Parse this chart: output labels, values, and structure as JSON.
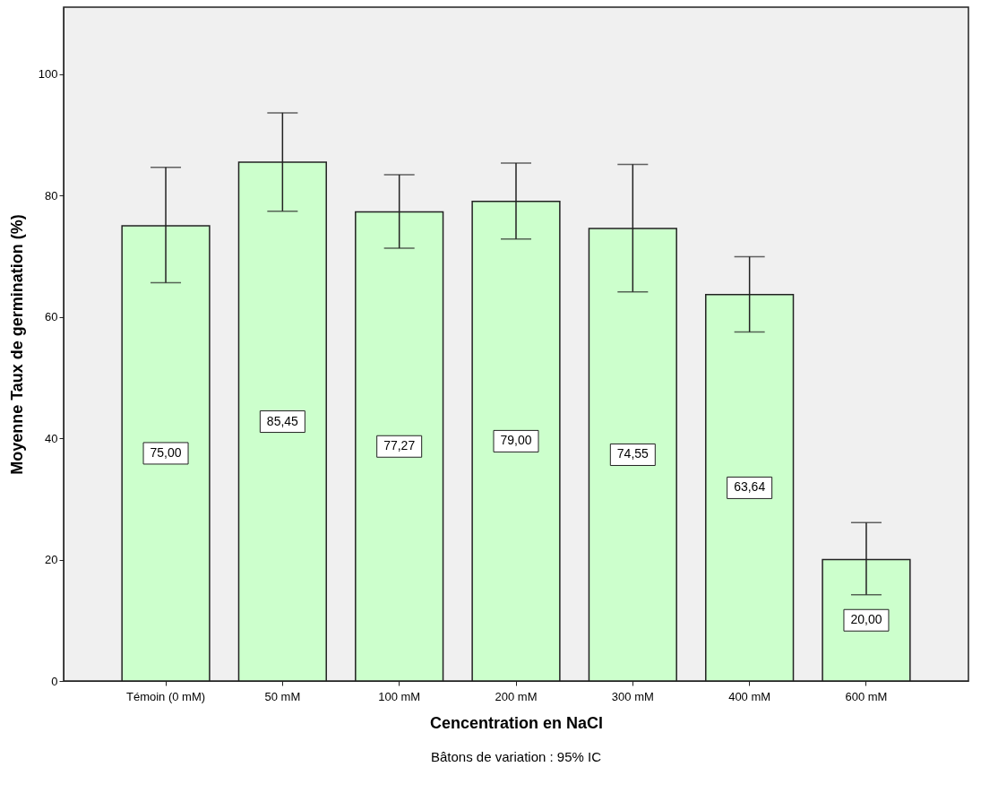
{
  "chart_data": {
    "type": "bar",
    "xlabel": "Cencentration en NaCl",
    "ylabel": "Moyenne Taux de germination (%)",
    "categories": [
      "Témoin (0 mM)",
      "50 mM",
      "100 mM",
      "200 mM",
      "300 mM",
      "400 mM",
      "600 mM"
    ],
    "values": [
      75.0,
      85.45,
      77.27,
      79.0,
      74.55,
      63.64,
      20.0
    ],
    "value_labels": [
      "75,00",
      "85,45",
      "77,27",
      "79,00",
      "74,55",
      "63,64",
      "20,00"
    ],
    "errors": [
      [
        65.6,
        84.6
      ],
      [
        77.4,
        93.6
      ],
      [
        71.3,
        83.4
      ],
      [
        72.8,
        85.3
      ],
      [
        64.1,
        85.1
      ],
      [
        57.5,
        69.9
      ],
      [
        14.2,
        26.1
      ]
    ],
    "color": "#ccffcc",
    "ylim": [
      0,
      111
    ],
    "yticks": [
      0,
      20,
      40,
      60,
      80,
      100
    ],
    "grid": false,
    "annotations": [
      "Bâtons de variation : 95% IC"
    ]
  }
}
